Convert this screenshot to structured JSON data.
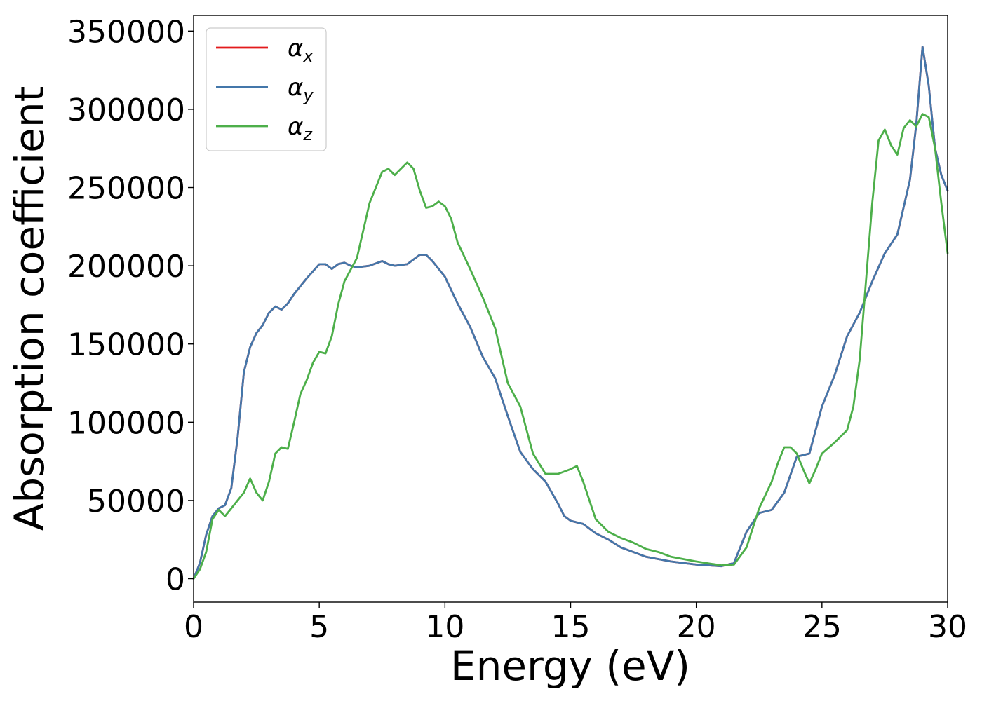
{
  "chart_data": {
    "type": "line",
    "title": "",
    "xlabel": "Energy (eV)",
    "ylabel": "Absorption coefficient",
    "xlim": [
      0,
      30
    ],
    "ylim": [
      -15000,
      360000
    ],
    "xticks": [
      0,
      5,
      10,
      15,
      20,
      25,
      30
    ],
    "yticks": [
      0,
      50000,
      100000,
      150000,
      200000,
      250000,
      300000,
      350000
    ],
    "grid": false,
    "legend_position": "top-left",
    "series": [
      {
        "name": "αx",
        "legend_symbol": "α",
        "legend_subscript": "x",
        "color": "#e31a1c",
        "x": [
          0,
          0.25,
          0.5,
          0.75,
          1.0,
          1.25,
          1.5,
          1.75,
          2.0,
          2.25,
          2.5,
          2.75,
          3.0,
          3.25,
          3.5,
          3.75,
          4.0,
          4.5,
          5.0,
          5.25,
          5.5,
          5.75,
          6.0,
          6.25,
          6.5,
          7.0,
          7.5,
          7.75,
          8.0,
          8.5,
          9.0,
          9.25,
          9.5,
          10.0,
          10.5,
          11.0,
          11.5,
          12.0,
          12.5,
          13.0,
          13.5,
          14.0,
          14.5,
          14.75,
          15.0,
          15.5,
          16.0,
          16.5,
          17.0,
          17.5,
          18.0,
          19.0,
          20.0,
          20.5,
          21.0,
          21.5,
          22.0,
          22.5,
          23.0,
          23.5,
          24.0,
          24.5,
          25.0,
          25.5,
          26.0,
          26.5,
          27.0,
          27.5,
          28.0,
          28.5,
          28.75,
          29.0,
          29.25,
          29.5,
          29.75,
          30.0
        ],
        "values": [
          0,
          10000,
          28000,
          40000,
          45000,
          47000,
          58000,
          90000,
          132000,
          148000,
          157000,
          162000,
          170000,
          174000,
          172000,
          176000,
          182000,
          192000,
          201000,
          201000,
          198000,
          201000,
          202000,
          200000,
          199000,
          200000,
          203000,
          201000,
          200000,
          201000,
          207000,
          207000,
          203000,
          193000,
          176000,
          161000,
          142000,
          128000,
          104000,
          81000,
          70000,
          62000,
          48000,
          40000,
          37000,
          35000,
          29000,
          25000,
          20000,
          17000,
          14000,
          11000,
          9000,
          8500,
          8000,
          10000,
          30000,
          42000,
          44000,
          55000,
          78000,
          80000,
          110000,
          130000,
          155000,
          170000,
          190000,
          208000,
          220000,
          255000,
          290000,
          340000,
          315000,
          275000,
          258000,
          248000
        ]
      },
      {
        "name": "αy",
        "legend_symbol": "α",
        "legend_subscript": "y",
        "color": "#4477aa",
        "x": [
          0,
          0.25,
          0.5,
          0.75,
          1.0,
          1.25,
          1.5,
          1.75,
          2.0,
          2.25,
          2.5,
          2.75,
          3.0,
          3.25,
          3.5,
          3.75,
          4.0,
          4.5,
          5.0,
          5.25,
          5.5,
          5.75,
          6.0,
          6.25,
          6.5,
          7.0,
          7.5,
          7.75,
          8.0,
          8.5,
          9.0,
          9.25,
          9.5,
          10.0,
          10.5,
          11.0,
          11.5,
          12.0,
          12.5,
          13.0,
          13.5,
          14.0,
          14.5,
          14.75,
          15.0,
          15.5,
          16.0,
          16.5,
          17.0,
          17.5,
          18.0,
          19.0,
          20.0,
          20.5,
          21.0,
          21.5,
          22.0,
          22.5,
          23.0,
          23.5,
          24.0,
          24.5,
          25.0,
          25.5,
          26.0,
          26.5,
          27.0,
          27.5,
          28.0,
          28.5,
          28.75,
          29.0,
          29.25,
          29.5,
          29.75,
          30.0
        ],
        "values": [
          0,
          10000,
          28000,
          40000,
          45000,
          47000,
          58000,
          90000,
          132000,
          148000,
          157000,
          162000,
          170000,
          174000,
          172000,
          176000,
          182000,
          192000,
          201000,
          201000,
          198000,
          201000,
          202000,
          200000,
          199000,
          200000,
          203000,
          201000,
          200000,
          201000,
          207000,
          207000,
          203000,
          193000,
          176000,
          161000,
          142000,
          128000,
          104000,
          81000,
          70000,
          62000,
          48000,
          40000,
          37000,
          35000,
          29000,
          25000,
          20000,
          17000,
          14000,
          11000,
          9000,
          8500,
          8000,
          10000,
          30000,
          42000,
          44000,
          55000,
          78000,
          80000,
          110000,
          130000,
          155000,
          170000,
          190000,
          208000,
          220000,
          255000,
          290000,
          340000,
          315000,
          275000,
          258000,
          248000
        ]
      },
      {
        "name": "αz",
        "legend_symbol": "α",
        "legend_subscript": "z",
        "color": "#4daf4a",
        "x": [
          0,
          0.25,
          0.5,
          0.75,
          1.0,
          1.25,
          1.5,
          1.75,
          2.0,
          2.25,
          2.5,
          2.75,
          3.0,
          3.25,
          3.5,
          3.75,
          4.0,
          4.25,
          4.5,
          4.75,
          5.0,
          5.25,
          5.5,
          5.75,
          6.0,
          6.5,
          7.0,
          7.5,
          7.75,
          8.0,
          8.25,
          8.5,
          8.75,
          9.0,
          9.25,
          9.5,
          9.75,
          10.0,
          10.25,
          10.5,
          11.0,
          11.5,
          12.0,
          12.5,
          13.0,
          13.5,
          14.0,
          14.5,
          15.0,
          15.25,
          15.5,
          16.0,
          16.5,
          17.0,
          17.5,
          18.0,
          18.5,
          19.0,
          20.0,
          21.0,
          21.5,
          22.0,
          22.5,
          23.0,
          23.25,
          23.5,
          23.75,
          24.0,
          24.25,
          24.5,
          24.75,
          25.0,
          25.5,
          26.0,
          26.25,
          26.5,
          27.0,
          27.25,
          27.5,
          27.75,
          28.0,
          28.25,
          28.5,
          28.75,
          29.0,
          29.25,
          29.5,
          29.75,
          30.0
        ],
        "values": [
          0,
          6000,
          17000,
          38000,
          44000,
          40000,
          45000,
          50000,
          55000,
          64000,
          55000,
          50000,
          62000,
          80000,
          84000,
          83000,
          100000,
          118000,
          127000,
          138000,
          145000,
          144000,
          155000,
          175000,
          190000,
          205000,
          240000,
          260000,
          262000,
          258000,
          262000,
          266000,
          262000,
          248000,
          237000,
          238000,
          241000,
          238000,
          230000,
          215000,
          198000,
          180000,
          160000,
          125000,
          110000,
          80000,
          67000,
          67000,
          70000,
          72000,
          62000,
          38000,
          30000,
          26000,
          23000,
          19000,
          17000,
          14000,
          11000,
          8500,
          9000,
          20000,
          45000,
          62000,
          74000,
          84000,
          84000,
          80000,
          70000,
          61000,
          70000,
          80000,
          87000,
          95000,
          110000,
          140000,
          240000,
          280000,
          287000,
          277000,
          271000,
          288000,
          293000,
          289000,
          297000,
          295000,
          275000,
          240000,
          208000
        ]
      }
    ]
  }
}
